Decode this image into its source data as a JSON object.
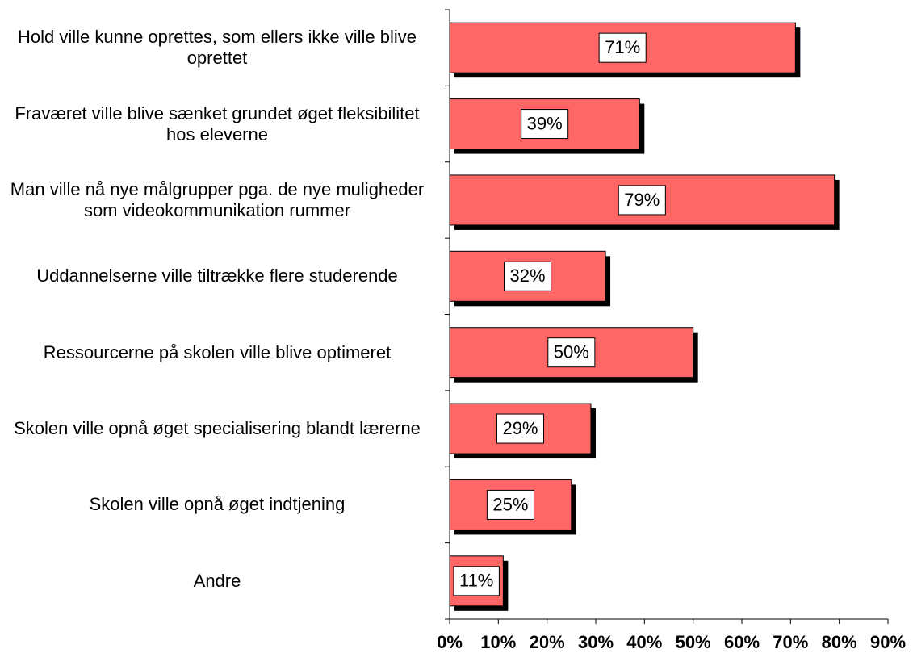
{
  "chart_data": {
    "type": "hbar",
    "categories": [
      "Hold ville kunne oprettes, som ellers ikke ville blive oprettet",
      "Fraværet ville blive sænket grundet øget fleksibilitet hos eleverne",
      "Man ville nå nye målgrupper pga. de nye muligheder som videokommunikation rummer",
      "Uddannelserne ville tiltrække flere studerende",
      "Ressourcerne på skolen ville blive optimeret",
      "Skolen ville opnå øget specialisering blandt lærerne",
      "Skolen ville opnå øget indtjening",
      "Andre"
    ],
    "values": [
      71,
      39,
      79,
      32,
      50,
      29,
      25,
      11
    ],
    "value_labels": [
      "71%",
      "39%",
      "79%",
      "32%",
      "50%",
      "29%",
      "25%",
      "11%"
    ],
    "color": "#ff6666",
    "xlim": [
      0,
      90
    ],
    "xticks": [
      {
        "value": 0,
        "label": "0%"
      },
      {
        "value": 10,
        "label": "10%"
      },
      {
        "value": 20,
        "label": "20%"
      },
      {
        "value": 30,
        "label": "30%"
      },
      {
        "value": 40,
        "label": "40%"
      },
      {
        "value": 50,
        "label": "50%"
      },
      {
        "value": 60,
        "label": "60%"
      },
      {
        "value": 70,
        "label": "70%"
      },
      {
        "value": 80,
        "label": "80%"
      },
      {
        "value": 90,
        "label": "90%"
      }
    ],
    "grid": false
  }
}
